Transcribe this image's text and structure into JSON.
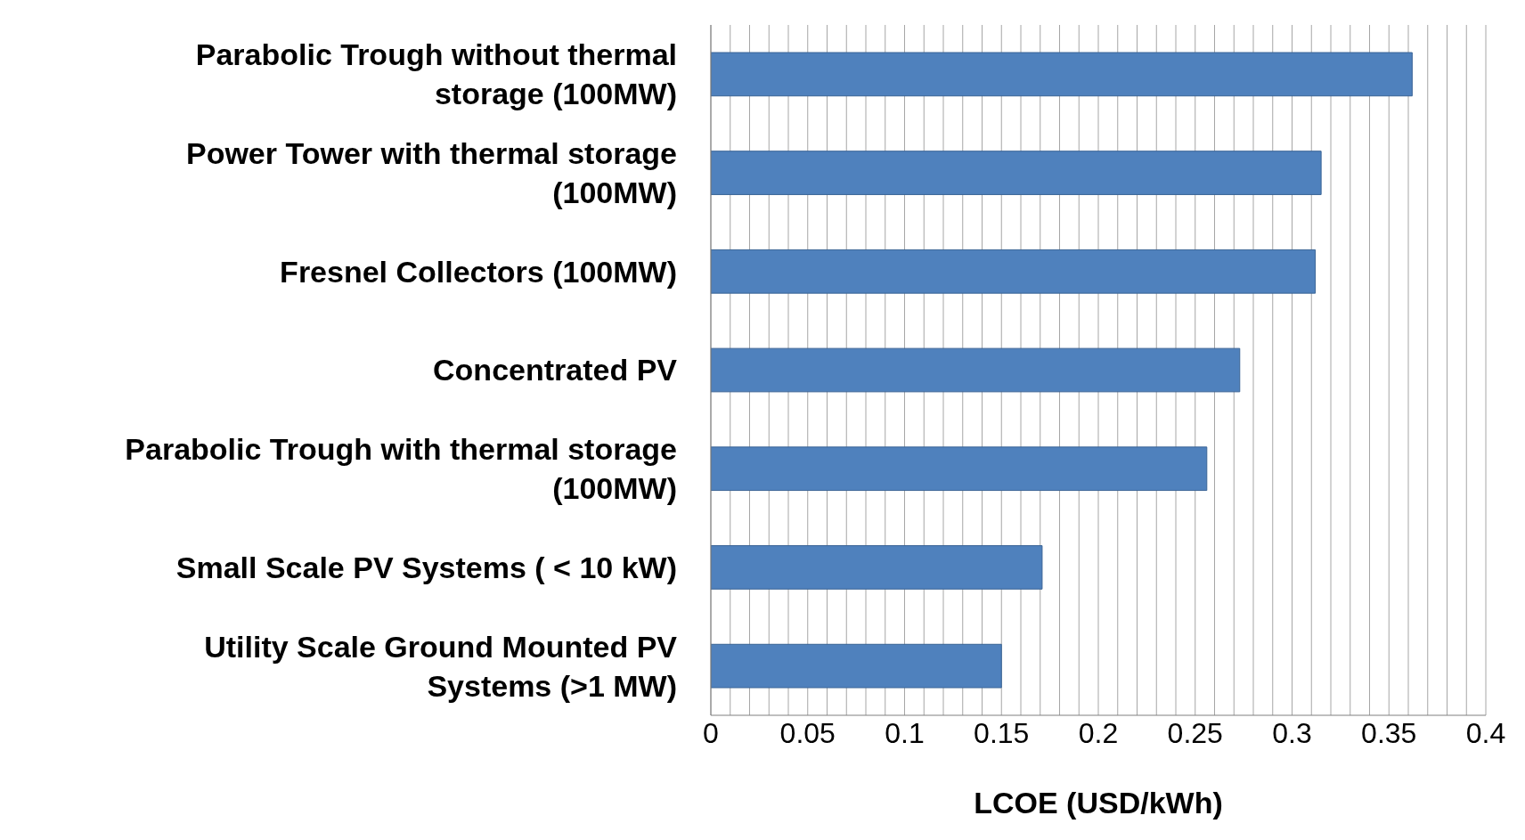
{
  "chart_data": {
    "type": "bar",
    "orientation": "horizontal",
    "xlabel": "LCOE (USD/kWh)",
    "categories": [
      "Parabolic Trough without thermal storage (100MW)",
      "Power Tower with thermal storage (100MW)",
      "Fresnel Collectors (100MW)",
      "Concentrated PV",
      "Parabolic Trough with thermal storage (100MW)",
      "Small Scale PV Systems ( < 10 kW)",
      "Utility Scale Ground Mounted PV Systems (>1 MW)"
    ],
    "values": [
      0.362,
      0.315,
      0.312,
      0.273,
      0.256,
      0.171,
      0.15
    ],
    "color": "#4f81bd",
    "xlim": [
      0,
      0.4
    ],
    "xticks": [
      0,
      {
        "value": 0.01,
        "label": null
      },
      {
        "value": 0.02,
        "label": null
      },
      {
        "value": 0.03,
        "label": null
      },
      {
        "value": 0.04,
        "label": null
      },
      0.05,
      {
        "value": 0.06,
        "label": null
      },
      {
        "value": 0.07,
        "label": null
      },
      {
        "value": 0.08,
        "label": null
      },
      {
        "value": 0.09,
        "label": null
      },
      0.1,
      {
        "value": 0.11,
        "label": null
      },
      {
        "value": 0.12,
        "label": null
      },
      {
        "value": 0.13,
        "label": null
      },
      {
        "value": 0.14,
        "label": null
      },
      0.15,
      {
        "value": 0.16,
        "label": null
      },
      {
        "value": 0.17,
        "label": null
      },
      {
        "value": 0.18,
        "label": null
      },
      {
        "value": 0.19,
        "label": null
      },
      0.2,
      {
        "value": 0.21,
        "label": null
      },
      {
        "value": 0.22,
        "label": null
      },
      {
        "value": 0.23,
        "label": null
      },
      {
        "value": 0.24,
        "label": null
      },
      0.25,
      {
        "value": 0.26,
        "label": null
      },
      {
        "value": 0.27,
        "label": null
      },
      {
        "value": 0.28,
        "label": null
      },
      {
        "value": 0.29,
        "label": null
      },
      0.3,
      {
        "value": 0.31,
        "label": null
      },
      {
        "value": 0.32,
        "label": null
      },
      {
        "value": 0.33,
        "label": null
      },
      {
        "value": 0.34,
        "label": null
      },
      0.35,
      {
        "value": 0.36,
        "label": null
      },
      {
        "value": 0.37,
        "label": null
      },
      {
        "value": 0.38,
        "label": null
      },
      {
        "value": 0.39,
        "label": null
      },
      0.4
    ],
    "grid": "x"
  }
}
